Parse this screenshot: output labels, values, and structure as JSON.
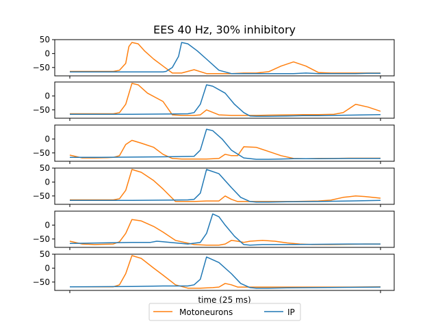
{
  "chart_data": {
    "type": "line",
    "title": "EES 40 Hz, 30% inhibitory",
    "xlabel": "time (25 ms)",
    "ylabel": "",
    "xlim": [
      0,
      100
    ],
    "legend": {
      "placement": "bottom-center",
      "entries": [
        "Motoneurons",
        "IP"
      ]
    },
    "colors": {
      "Motoneurons": "#ff7f0e",
      "IP": "#1f77b4"
    },
    "panels": [
      {
        "ylim": [
          -80,
          50
        ],
        "yticks": [
          -50,
          0,
          50
        ],
        "ytick_labels": [
          "−50",
          "0",
          "50"
        ],
        "series": [
          {
            "name": "Motoneurons",
            "x": [
              0,
              14,
              16,
              18,
              19,
              20,
              22,
              24,
              27,
              30,
              33,
              36,
              40,
              44,
              48,
              52,
              56,
              60,
              64,
              68,
              72,
              76,
              80,
              84,
              88,
              92,
              96,
              100
            ],
            "y": [
              -64,
              -64,
              -60,
              -35,
              25,
              40,
              35,
              10,
              -20,
              -45,
              -70,
              -70,
              -58,
              -72,
              -72,
              -72,
              -70,
              -70,
              -65,
              -45,
              -30,
              -45,
              -68,
              -70,
              -70,
              -70,
              -70,
              -70
            ]
          },
          {
            "name": "IP",
            "x": [
              0,
              20,
              25,
              30,
              31,
              33,
              35,
              36,
              38,
              41,
              44,
              48,
              52,
              56,
              60,
              64,
              68,
              72,
              76,
              80,
              84,
              88,
              92,
              96,
              100
            ],
            "y": [
              -66,
              -66,
              -66,
              -66,
              -64,
              -50,
              -10,
              40,
              35,
              10,
              -20,
              -60,
              -72,
              -72,
              -72,
              -72,
              -72,
              -72,
              -70,
              -72,
              -72,
              -72,
              -72,
              -71,
              -71
            ]
          }
        ]
      },
      {
        "ylim": [
          -80,
          50
        ],
        "yticks": [
          -50,
          0
        ],
        "ytick_labels": [
          "−50",
          "0"
        ],
        "series": [
          {
            "name": "Motoneurons",
            "x": [
              0,
              14,
              16,
              18,
              20,
              22,
              25,
              30,
              33,
              36,
              40,
              42,
              44,
              48,
              52,
              56,
              60,
              64,
              70,
              75,
              80,
              85,
              88,
              92,
              96,
              100
            ],
            "y": [
              -64,
              -64,
              -60,
              -30,
              45,
              40,
              10,
              -20,
              -68,
              -70,
              -70,
              -68,
              -50,
              -68,
              -70,
              -70,
              -70,
              -69,
              -68,
              -67,
              -67,
              -66,
              -60,
              -30,
              -40,
              -55
            ]
          },
          {
            "name": "IP",
            "x": [
              0,
              20,
              30,
              38,
              40,
              42,
              44,
              46,
              50,
              53,
              56,
              58,
              60,
              64,
              70,
              75,
              80,
              85,
              90,
              95,
              100
            ],
            "y": [
              -66,
              -66,
              -65,
              -64,
              -60,
              -30,
              40,
              35,
              10,
              -30,
              -60,
              -72,
              -73,
              -73,
              -72,
              -71,
              -71,
              -70,
              -69,
              -68,
              -67
            ]
          }
        ]
      },
      {
        "ylim": [
          -80,
          50
        ],
        "yticks": [
          -50,
          0
        ],
        "ytick_labels": [
          "−50",
          "0"
        ],
        "series": [
          {
            "name": "Motoneurons",
            "x": [
              0,
              4,
              8,
              12,
              14,
              16,
              18,
              20,
              23,
              27,
              30,
              33,
              36,
              40,
              44,
              48,
              50,
              52,
              54,
              56,
              60,
              64,
              68,
              72,
              76,
              80,
              85,
              90,
              95,
              100
            ],
            "y": [
              -58,
              -68,
              -68,
              -67,
              -66,
              -60,
              -20,
              -5,
              -15,
              -30,
              -55,
              -70,
              -72,
              -72,
              -72,
              -70,
              -55,
              -60,
              -60,
              -28,
              -30,
              -45,
              -60,
              -70,
              -71,
              -70,
              -70,
              -69,
              -69,
              -69
            ]
          },
          {
            "name": "IP",
            "x": [
              0,
              10,
              20,
              30,
              40,
              42,
              44,
              46,
              49,
              52,
              56,
              60,
              64,
              68,
              72,
              80,
              90,
              100
            ],
            "y": [
              -66,
              -66,
              -65,
              -64,
              -62,
              -40,
              35,
              30,
              0,
              -40,
              -68,
              -73,
              -73,
              -72,
              -71,
              -71,
              -70,
              -70
            ]
          }
        ]
      },
      {
        "ylim": [
          -80,
          50
        ],
        "yticks": [
          -50,
          0,
          50
        ],
        "ytick_labels": [
          "−50",
          "0",
          "50"
        ],
        "series": [
          {
            "name": "Motoneurons",
            "x": [
              0,
              14,
              16,
              18,
              20,
              23,
              27,
              30,
              34,
              40,
              44,
              48,
              50,
              52,
              54,
              58,
              62,
              66,
              72,
              80,
              84,
              88,
              92,
              95,
              100
            ],
            "y": [
              -64,
              -64,
              -60,
              -30,
              45,
              35,
              5,
              -25,
              -70,
              -70,
              -68,
              -68,
              -50,
              -62,
              -70,
              -70,
              -70,
              -70,
              -70,
              -68,
              -65,
              -55,
              -50,
              -52,
              -58
            ]
          },
          {
            "name": "IP",
            "x": [
              0,
              20,
              30,
              38,
              40,
              42,
              44,
              48,
              52,
              55,
              58,
              60,
              64,
              70,
              80,
              90,
              100
            ],
            "y": [
              -66,
              -66,
              -65,
              -64,
              -62,
              -40,
              45,
              30,
              -20,
              -55,
              -70,
              -72,
              -72,
              -71,
              -70,
              -68,
              -66
            ]
          }
        ]
      },
      {
        "ylim": [
          -80,
          50
        ],
        "yticks": [
          -50,
          0
        ],
        "ytick_labels": [
          "−50",
          "0"
        ],
        "series": [
          {
            "name": "Motoneurons",
            "x": [
              0,
              4,
              8,
              14,
              16,
              18,
              20,
              23,
              27,
              30,
              34,
              40,
              44,
              48,
              50,
              52,
              54,
              56,
              58,
              62,
              66,
              70,
              74,
              78,
              84,
              90,
              95,
              100
            ],
            "y": [
              -58,
              -68,
              -70,
              -68,
              -60,
              -30,
              20,
              15,
              -5,
              -25,
              -55,
              -70,
              -72,
              -72,
              -68,
              -55,
              -58,
              -62,
              -58,
              -55,
              -58,
              -64,
              -68,
              -70,
              -70,
              -69,
              -68,
              -68
            ]
          },
          {
            "name": "IP",
            "x": [
              0,
              10,
              20,
              26,
              28,
              30,
              38,
              42,
              44,
              46,
              48,
              50,
              53,
              56,
              58,
              62,
              70,
              80,
              90,
              100
            ],
            "y": [
              -66,
              -64,
              -62,
              -62,
              -58,
              -60,
              -68,
              -62,
              -30,
              40,
              30,
              0,
              -40,
              -70,
              -72,
              -70,
              -70,
              -69,
              -68,
              -68
            ]
          }
        ]
      },
      {
        "ylim": [
          -80,
          50
        ],
        "yticks": [
          -50,
          0,
          50
        ],
        "ytick_labels": [
          "−50",
          "0",
          "50"
        ],
        "series": [
          {
            "name": "Motoneurons",
            "x": [
              0,
              14,
              16,
              18,
              20,
              23,
              27,
              30,
              34,
              38,
              42,
              46,
              48,
              50,
              52,
              54,
              58,
              64,
              70,
              80,
              90,
              100
            ],
            "y": [
              -67,
              -67,
              -60,
              -20,
              45,
              35,
              0,
              -25,
              -60,
              -72,
              -72,
              -70,
              -68,
              -55,
              -60,
              -68,
              -68,
              -68,
              -68,
              -68,
              -68,
              -67
            ]
          },
          {
            "name": "IP",
            "x": [
              0,
              20,
              30,
              38,
              40,
              42,
              44,
              48,
              52,
              55,
              58,
              60,
              64,
              70,
              80,
              90,
              100
            ],
            "y": [
              -67,
              -66,
              -64,
              -64,
              -60,
              -40,
              40,
              20,
              -20,
              -55,
              -70,
              -72,
              -72,
              -71,
              -70,
              -69,
              -68
            ]
          }
        ]
      }
    ]
  }
}
